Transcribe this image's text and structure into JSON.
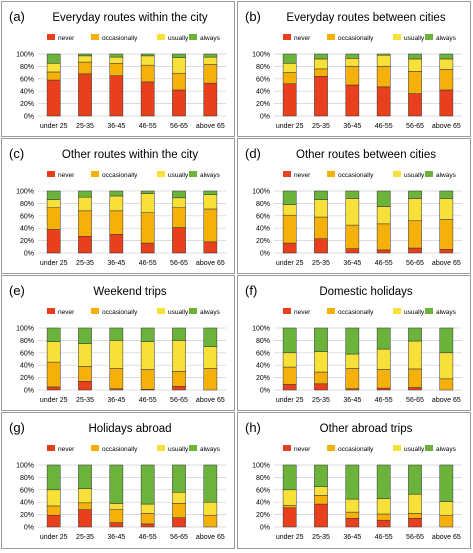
{
  "chart_data": [
    {
      "type": "bar",
      "stacked": true,
      "label": "(a)",
      "title": "Everyday routes within the city",
      "categories": [
        "under 25",
        "25-35",
        "36-45",
        "46-55",
        "56-65",
        "above 65"
      ],
      "series": [
        {
          "name": "never",
          "values": [
            58,
            68,
            65,
            55,
            42,
            53
          ]
        },
        {
          "name": "occasionally",
          "values": [
            13,
            19,
            20,
            27,
            27,
            30
          ]
        },
        {
          "name": "usually",
          "values": [
            14,
            10,
            10,
            15,
            25,
            12
          ]
        },
        {
          "name": "always",
          "values": [
            15,
            3,
            5,
            3,
            6,
            5
          ]
        }
      ],
      "yticks": [
        "0%",
        "20%",
        "40%",
        "60%",
        "80%",
        "100%"
      ],
      "ylim": [
        0,
        100
      ],
      "legend": "top"
    },
    {
      "type": "bar",
      "stacked": true,
      "label": "(b)",
      "title": "Everyday routes between cities",
      "categories": [
        "under 25",
        "25-35",
        "36-45",
        "46-55",
        "56-65",
        "above 65"
      ],
      "series": [
        {
          "name": "never",
          "values": [
            52,
            64,
            50,
            47,
            36,
            42
          ]
        },
        {
          "name": "occasionally",
          "values": [
            18,
            12,
            30,
            33,
            36,
            33
          ]
        },
        {
          "name": "usually",
          "values": [
            15,
            16,
            13,
            18,
            20,
            17
          ]
        },
        {
          "name": "always",
          "values": [
            15,
            8,
            7,
            2,
            8,
            8
          ]
        }
      ],
      "yticks": [
        "0%",
        "20%",
        "40%",
        "60%",
        "80%",
        "100%"
      ],
      "ylim": [
        0,
        100
      ],
      "legend": "top"
    },
    {
      "type": "bar",
      "stacked": true,
      "label": "(c)",
      "title": "Other routes within the city",
      "categories": [
        "under 25",
        "25-35",
        "36-45",
        "46-55",
        "56-65",
        "above 65"
      ],
      "series": [
        {
          "name": "never",
          "values": [
            38,
            27,
            30,
            16,
            41,
            18
          ]
        },
        {
          "name": "occasionally",
          "values": [
            35,
            41,
            38,
            49,
            32,
            53
          ]
        },
        {
          "name": "usually",
          "values": [
            13,
            22,
            24,
            31,
            16,
            23
          ]
        },
        {
          "name": "always",
          "values": [
            14,
            10,
            8,
            4,
            11,
            6
          ]
        }
      ],
      "yticks": [
        "0%",
        "20%",
        "40%",
        "60%",
        "80%",
        "100%"
      ],
      "ylim": [
        0,
        100
      ],
      "legend": "top"
    },
    {
      "type": "bar",
      "stacked": true,
      "label": "(d)",
      "title": "Other routes between cities",
      "categories": [
        "under 25",
        "25-35",
        "36-45",
        "46-55",
        "56-65",
        "above 65"
      ],
      "series": [
        {
          "name": "never",
          "values": [
            16,
            23,
            7,
            5,
            8,
            6
          ]
        },
        {
          "name": "occasionally",
          "values": [
            45,
            35,
            38,
            42,
            44,
            48
          ]
        },
        {
          "name": "usually",
          "values": [
            17,
            28,
            43,
            28,
            36,
            34
          ]
        },
        {
          "name": "always",
          "values": [
            22,
            14,
            12,
            25,
            12,
            12
          ]
        }
      ],
      "yticks": [
        "0%",
        "20%",
        "40%",
        "60%",
        "80%",
        "100%"
      ],
      "ylim": [
        0,
        100
      ],
      "legend": "top"
    },
    {
      "type": "bar",
      "stacked": true,
      "label": "(e)",
      "title": "Weekend trips",
      "categories": [
        "under 25",
        "25-35",
        "36-45",
        "46-55",
        "56-65",
        "above 65"
      ],
      "series": [
        {
          "name": "never",
          "values": [
            5,
            14,
            2,
            1,
            6,
            0
          ]
        },
        {
          "name": "occasionally",
          "values": [
            40,
            24,
            33,
            32,
            24,
            35
          ]
        },
        {
          "name": "usually",
          "values": [
            33,
            37,
            45,
            45,
            50,
            35
          ]
        },
        {
          "name": "always",
          "values": [
            22,
            25,
            20,
            22,
            20,
            30
          ]
        }
      ],
      "yticks": [
        "0%",
        "20%",
        "40%",
        "60%",
        "80%",
        "100%"
      ],
      "ylim": [
        0,
        100
      ],
      "legend": "top"
    },
    {
      "type": "bar",
      "stacked": true,
      "label": "(f)",
      "title": "Domestic holidays",
      "categories": [
        "under 25",
        "25-35",
        "36-45",
        "46-55",
        "56-65",
        "above 65"
      ],
      "series": [
        {
          "name": "never",
          "values": [
            9,
            10,
            2,
            3,
            4,
            0
          ]
        },
        {
          "name": "occasionally",
          "values": [
            28,
            19,
            33,
            30,
            30,
            18
          ]
        },
        {
          "name": "usually",
          "values": [
            23,
            33,
            23,
            33,
            45,
            42
          ]
        },
        {
          "name": "always",
          "values": [
            40,
            38,
            42,
            34,
            21,
            40
          ]
        }
      ],
      "yticks": [
        "0%",
        "20%",
        "40%",
        "60%",
        "80%",
        "100%"
      ],
      "ylim": [
        0,
        100
      ],
      "legend": "top"
    },
    {
      "type": "bar",
      "stacked": true,
      "label": "(g)",
      "title": "Holidays abroad",
      "categories": [
        "under 25",
        "25-35",
        "36-45",
        "46-55",
        "56-65",
        "above 65"
      ],
      "series": [
        {
          "name": "never",
          "values": [
            19,
            28,
            7,
            5,
            15,
            0
          ]
        },
        {
          "name": "occasionally",
          "values": [
            15,
            11,
            21,
            17,
            23,
            19
          ]
        },
        {
          "name": "usually",
          "values": [
            26,
            23,
            10,
            15,
            18,
            21
          ]
        },
        {
          "name": "always",
          "values": [
            40,
            38,
            62,
            63,
            44,
            60
          ]
        }
      ],
      "yticks": [
        "0%",
        "20%",
        "40%",
        "60%",
        "80%",
        "100%"
      ],
      "ylim": [
        0,
        100
      ],
      "legend": "top"
    },
    {
      "type": "bar",
      "stacked": true,
      "label": "(h)",
      "title": "Other abroad trips",
      "categories": [
        "under 25",
        "25-35",
        "36-45",
        "46-55",
        "56-65",
        "above 65"
      ],
      "series": [
        {
          "name": "never",
          "values": [
            31,
            37,
            14,
            11,
            14,
            0
          ]
        },
        {
          "name": "occasionally",
          "values": [
            4,
            14,
            10,
            10,
            8,
            19
          ]
        },
        {
          "name": "usually",
          "values": [
            25,
            14,
            21,
            25,
            31,
            22
          ]
        },
        {
          "name": "always",
          "values": [
            40,
            35,
            55,
            54,
            47,
            59
          ]
        }
      ],
      "yticks": [
        "0%",
        "20%",
        "40%",
        "60%",
        "80%",
        "100%"
      ],
      "ylim": [
        0,
        100
      ],
      "legend": "top"
    }
  ],
  "colors": {
    "never": "#e8401c",
    "occasionally": "#f5b10a",
    "usually": "#f7e03a",
    "always": "#6bb33a",
    "grid": "#d0d0d0",
    "text": "#000000"
  }
}
